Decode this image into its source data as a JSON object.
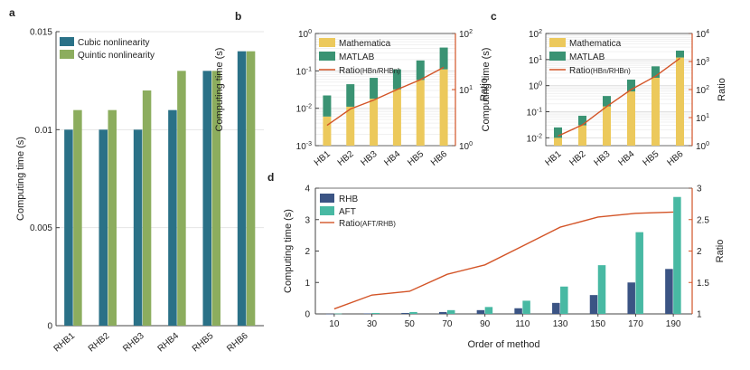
{
  "chart_data": [
    {
      "panel": "a",
      "type": "bar",
      "xlabel": "",
      "ylabel": "Computing time (s)",
      "ylim": [
        0,
        0.015
      ],
      "yticks": [
        "0",
        "0.005",
        "0.01",
        "0.015"
      ],
      "grid": true,
      "legend": "top-left",
      "categories": [
        "RHB1",
        "RHB2",
        "RHB3",
        "RHB4",
        "RHB5",
        "RHB6"
      ],
      "series": [
        {
          "name": "Cubic nonlinearity",
          "color": "#2a7187",
          "values": [
            0.01,
            0.01,
            0.01,
            0.011,
            0.013,
            0.014
          ]
        },
        {
          "name": "Quintic nonlinearity",
          "color": "#8cad5e",
          "values": [
            0.011,
            0.011,
            0.012,
            0.013,
            0.013,
            0.014
          ]
        }
      ]
    },
    {
      "panel": "b",
      "type": "bar",
      "stacked": true,
      "ylabel": "Computing time (s)",
      "y2label": "Ratio",
      "yscale": "log",
      "ylim": [
        0.001,
        1
      ],
      "yticks": [
        "10",
        "10",
        "10",
        "10"
      ],
      "ytick_exps": [
        "-3",
        "-2",
        "-1",
        "0"
      ],
      "y2lim": [
        1,
        100
      ],
      "y2ticks": [
        "10",
        "10",
        "10"
      ],
      "y2tick_exps": [
        "0",
        "1",
        "2"
      ],
      "legend": "top-left",
      "categories": [
        "HB1",
        "HB2",
        "HB3",
        "HB4",
        "HB5",
        "HB6"
      ],
      "series": [
        {
          "name": "Mathematica",
          "color": "#ecc95c",
          "values": [
            0.006,
            0.011,
            0.018,
            0.032,
            0.057,
            0.11
          ]
        },
        {
          "name": "MATLAB",
          "color": "#3a9373",
          "values": [
            0.022,
            0.044,
            0.065,
            0.11,
            0.19,
            0.42
          ]
        }
      ],
      "line": {
        "name": "Ratio",
        "name_sub": "(HBn/RHBn)",
        "color": "#d35427",
        "axis": "right",
        "values": [
          2.3,
          4.5,
          6.5,
          10,
          15,
          25
        ]
      }
    },
    {
      "panel": "c",
      "type": "bar",
      "stacked": true,
      "ylabel": "Computing time (s)",
      "y2label": "Ratio",
      "yscale": "log",
      "ylim": [
        0.005,
        100
      ],
      "yticks": [
        "10",
        "10",
        "10",
        "10",
        "10"
      ],
      "ytick_exps": [
        "-2",
        "-1",
        "0",
        "1",
        "2"
      ],
      "y2lim": [
        1,
        10000
      ],
      "y2ticks": [
        "10",
        "10",
        "10",
        "10",
        "10"
      ],
      "y2tick_exps": [
        "0",
        "1",
        "2",
        "3",
        "4"
      ],
      "legend": "top-left",
      "categories": [
        "HB1",
        "HB2",
        "HB3",
        "HB4",
        "HB5",
        "HB6"
      ],
      "series": [
        {
          "name": "Mathematica",
          "color": "#ecc95c",
          "values": [
            0.01,
            0.03,
            0.16,
            0.6,
            2.0,
            12
          ]
        },
        {
          "name": "MATLAB",
          "color": "#3a9373",
          "values": [
            0.025,
            0.07,
            0.4,
            1.7,
            5.5,
            22
          ]
        }
      ],
      "line": {
        "name": "Ratio",
        "name_sub": "(HBn/RHBn)",
        "color": "#d35427",
        "axis": "right",
        "values": [
          2.2,
          5.5,
          25,
          100,
          300,
          1300
        ]
      }
    },
    {
      "panel": "d",
      "type": "bar",
      "xlabel": "Order of method",
      "ylabel": "Computing time (s)",
      "y2label": "Ratio",
      "ylim": [
        0,
        4
      ],
      "yticks": [
        "0",
        "1",
        "2",
        "3",
        "4"
      ],
      "y2lim": [
        1,
        3
      ],
      "y2ticks": [
        "1",
        "1.5",
        "2",
        "2.5",
        "3"
      ],
      "legend": "top-left",
      "categories": [
        "10",
        "30",
        "50",
        "70",
        "90",
        "110",
        "130",
        "150",
        "170",
        "190"
      ],
      "series": [
        {
          "name": "RHB",
          "color": "#3b5484",
          "values": [
            0.005,
            0.015,
            0.03,
            0.06,
            0.12,
            0.18,
            0.35,
            0.6,
            1.0,
            1.43
          ]
        },
        {
          "name": "AFT",
          "color": "#48b9a3",
          "values": [
            0.01,
            0.03,
            0.06,
            0.12,
            0.22,
            0.42,
            0.87,
            1.55,
            2.6,
            3.72
          ]
        }
      ],
      "line": {
        "name": "Ratio",
        "name_sub": "(AFT/RHB)",
        "color": "#d35427",
        "axis": "right",
        "values": [
          1.08,
          1.3,
          1.36,
          1.63,
          1.78,
          2.08,
          2.38,
          2.54,
          2.6,
          2.62
        ]
      }
    }
  ]
}
